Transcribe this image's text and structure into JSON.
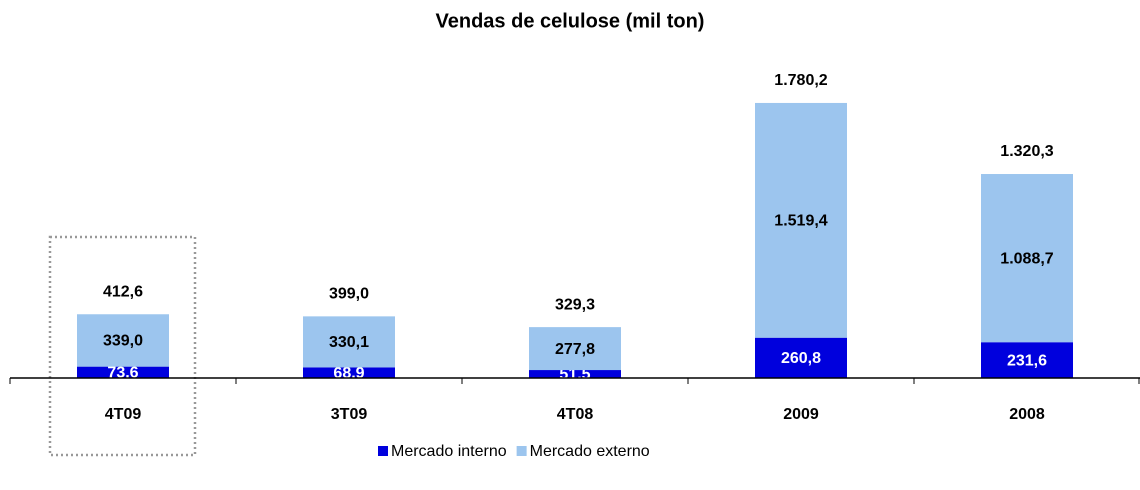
{
  "chart_data": {
    "type": "stacked-bar",
    "title": "Vendas de celulose (mil ton)",
    "categories": [
      "4T09",
      "3T09",
      "4T08",
      "2009",
      "2008"
    ],
    "series": [
      {
        "name": "Mercado interno",
        "color": "#0000dd",
        "values": [
          73.6,
          68.9,
          51.5,
          260.8,
          231.6
        ],
        "value_labels": [
          "73,6",
          "68,9",
          "51,5",
          "260,8",
          "231,6"
        ]
      },
      {
        "name": "Mercado externo",
        "color": "#9cc5ee",
        "values": [
          339.0,
          330.1,
          277.8,
          1519.4,
          1088.7
        ],
        "value_labels": [
          "339,0",
          "330,1",
          "277,8",
          "1.519,4",
          "1.088,7"
        ]
      }
    ],
    "totals": [
      412.6,
      399.0,
      329.3,
      1780.2,
      1320.3
    ],
    "total_labels": [
      "412,6",
      "399,0",
      "329,3",
      "1.780,2",
      "1.320,3"
    ],
    "ylim": [
      0,
      2000
    ],
    "legend": "bottom"
  }
}
